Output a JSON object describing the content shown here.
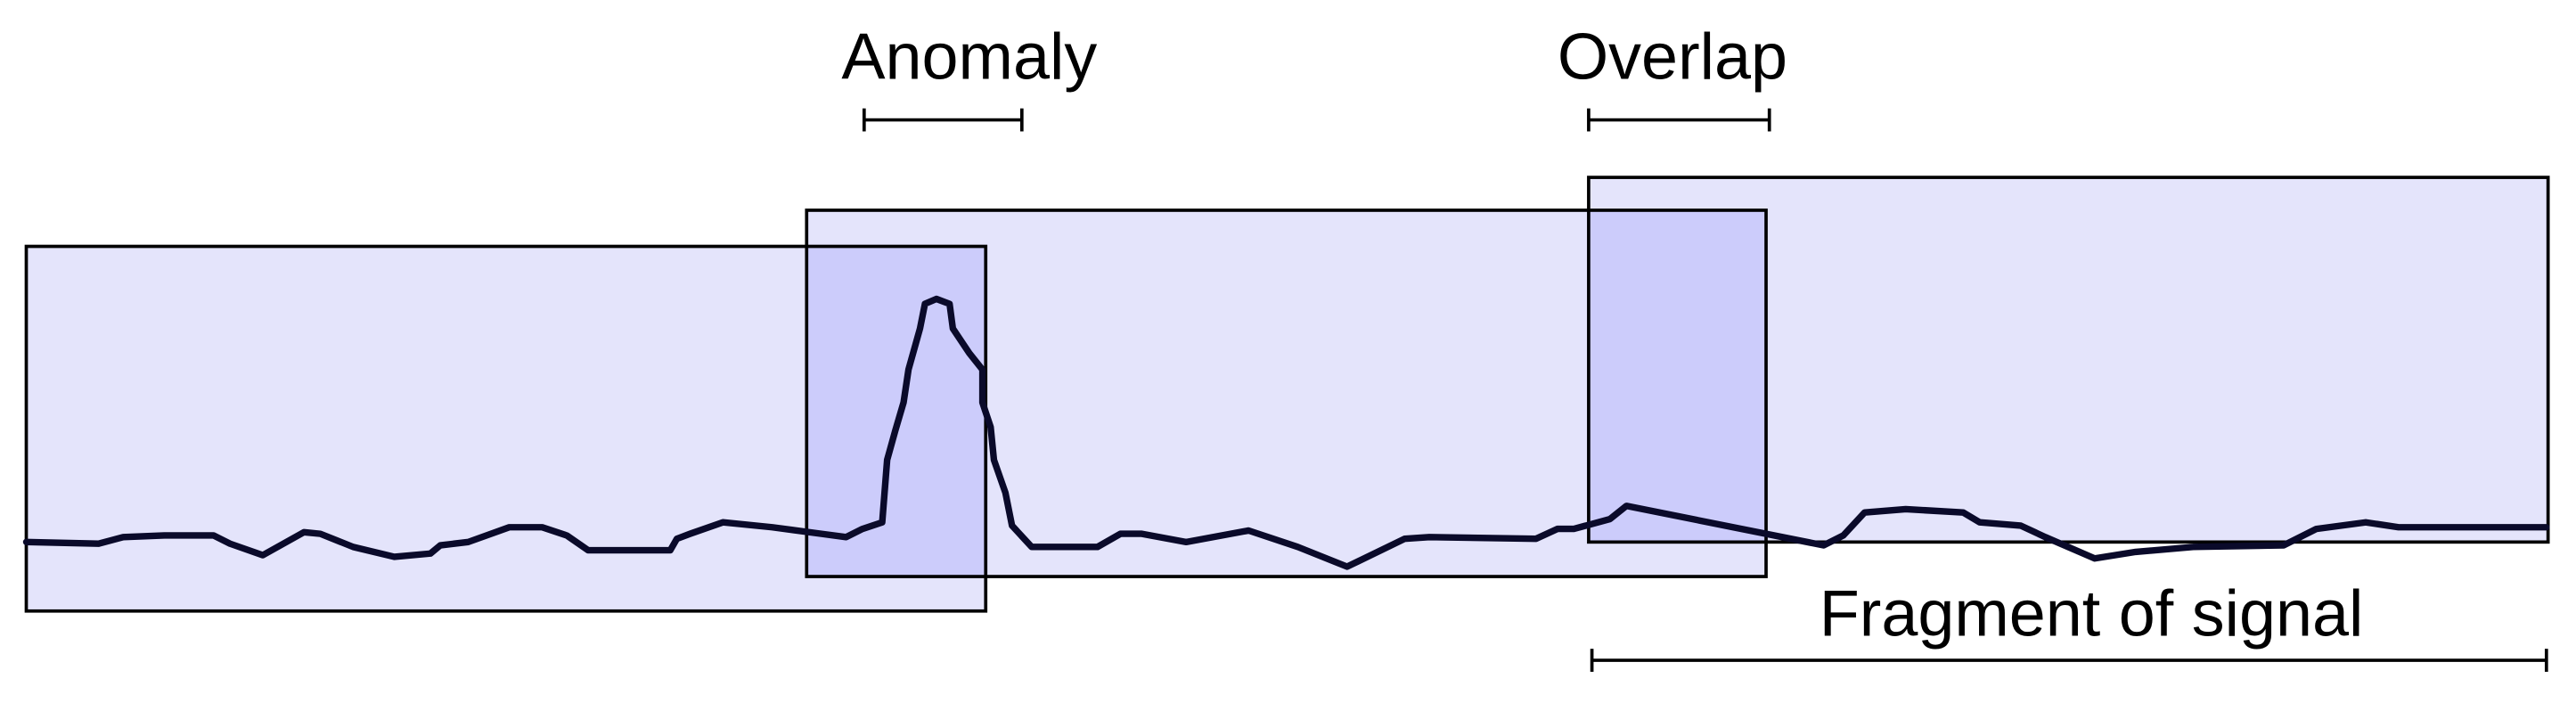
{
  "labels": {
    "anomaly": "Anomaly",
    "overlap": "Overlap",
    "fragment": "Fragment of signal"
  }
}
